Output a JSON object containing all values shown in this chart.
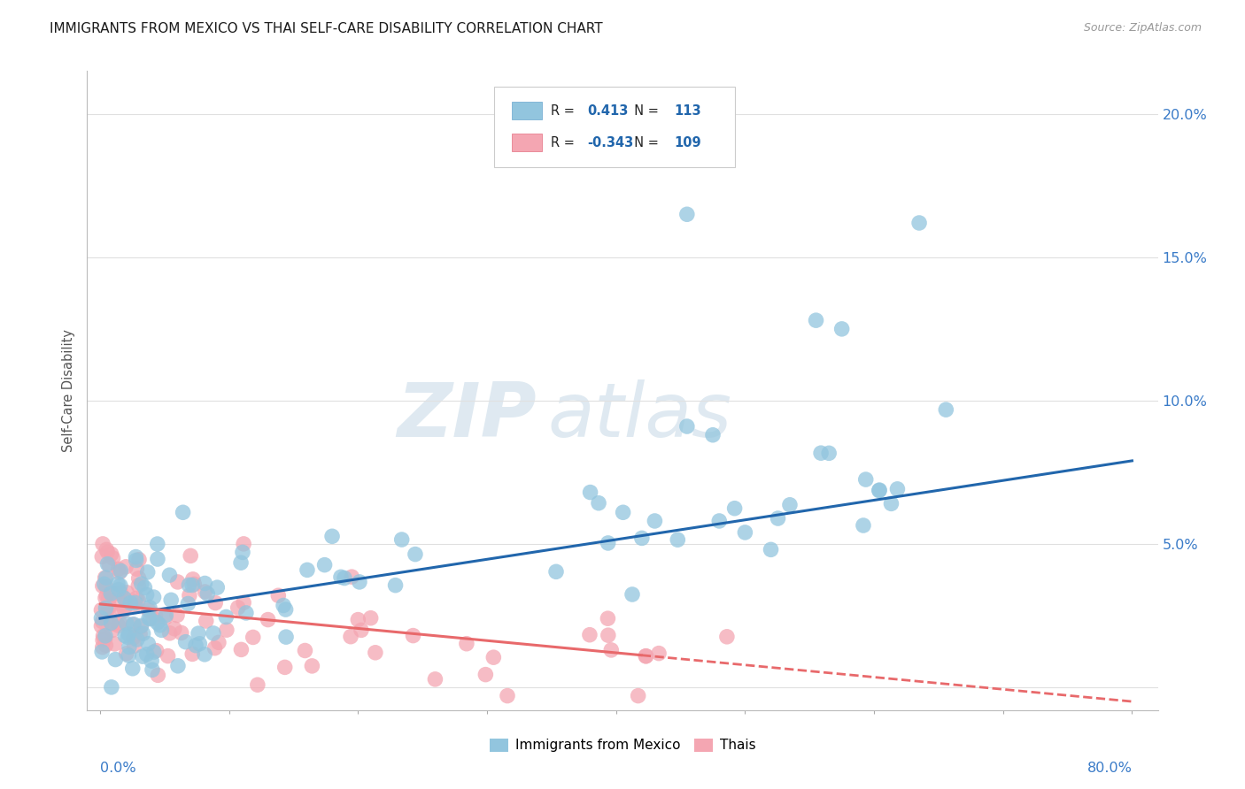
{
  "title": "IMMIGRANTS FROM MEXICO VS THAI SELF-CARE DISABILITY CORRELATION CHART",
  "source": "Source: ZipAtlas.com",
  "ylabel": "Self-Care Disability",
  "xlim": [
    -0.01,
    0.82
  ],
  "ylim": [
    -0.008,
    0.215
  ],
  "ytick_values": [
    0.0,
    0.05,
    0.1,
    0.15,
    0.2
  ],
  "ytick_labels": [
    "",
    "5.0%",
    "10.0%",
    "15.0%",
    "20.0%"
  ],
  "xtick_values": [
    0.0,
    0.1,
    0.2,
    0.3,
    0.4,
    0.5,
    0.6,
    0.7,
    0.8
  ],
  "legend_R_mexico": "0.413",
  "legend_N_mexico": "113",
  "legend_R_thai": "-0.343",
  "legend_N_thai": "109",
  "color_mexico": "#92c5de",
  "color_thai": "#f4a6b2",
  "color_line_mexico": "#2166ac",
  "color_line_thai": "#e8696b",
  "watermark_zip": "ZIP",
  "watermark_atlas": "atlas",
  "background_color": "#ffffff",
  "grid_color": "#e0e0e0",
  "line_mexico_x0": 0.0,
  "line_mexico_y0": 0.024,
  "line_mexico_x1": 0.8,
  "line_mexico_y1": 0.079,
  "line_thai_x0": 0.0,
  "line_thai_y0": 0.029,
  "line_thai_x1": 0.8,
  "line_thai_y1": -0.005,
  "line_thai_solid_end": 0.42
}
